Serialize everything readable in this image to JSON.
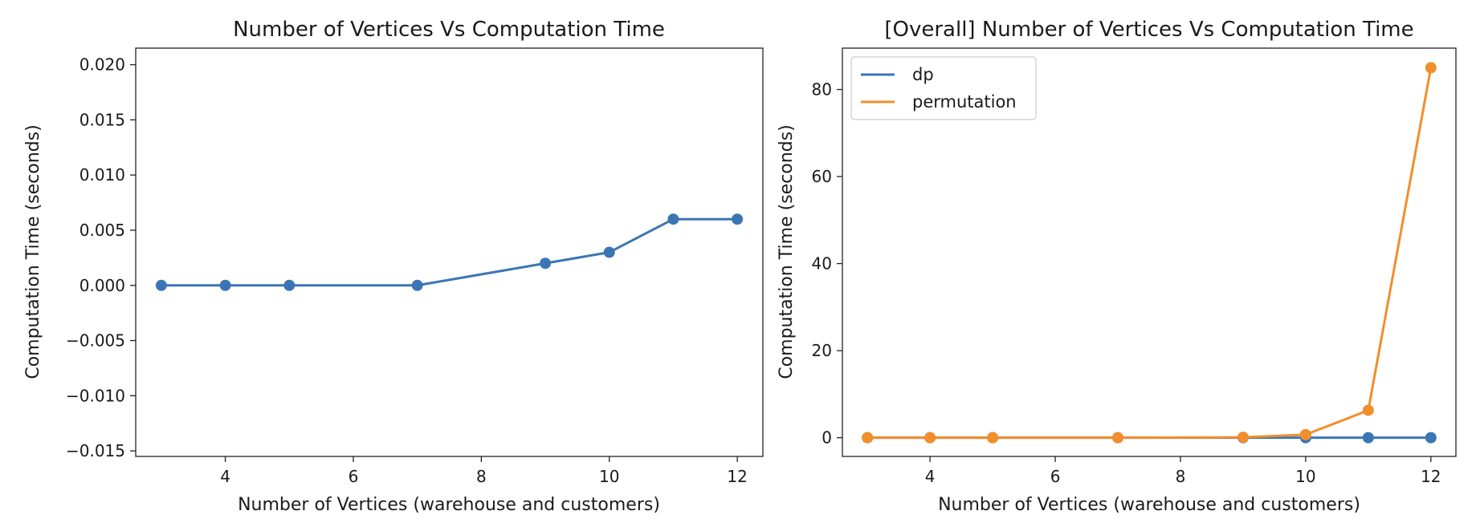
{
  "chart_data": [
    {
      "type": "line",
      "title": "Number of Vertices Vs Computation Time",
      "xlabel": "Number of Vertices (warehouse and customers)",
      "ylabel": "Computation Time (seconds)",
      "xlim": [
        2.6,
        12.4
      ],
      "ylim": [
        -0.0155,
        0.0215
      ],
      "xticks": [
        4,
        6,
        8,
        10,
        12
      ],
      "xtick_labels": [
        "4",
        "6",
        "8",
        "10",
        "12"
      ],
      "yticks": [
        -0.015,
        -0.01,
        -0.005,
        0.0,
        0.005,
        0.01,
        0.015,
        0.02
      ],
      "ytick_labels": [
        "−0.015",
        "−0.010",
        "−0.005",
        "0.000",
        "0.005",
        "0.010",
        "0.015",
        "0.020"
      ],
      "grid": false,
      "legend": null,
      "series": [
        {
          "color": "#3a76b4",
          "x": [
            3,
            4,
            5,
            7,
            9,
            10,
            11,
            12
          ],
          "y": [
            0.0,
            0.0,
            0.0,
            0.0,
            0.002,
            0.003,
            0.006,
            0.006
          ]
        }
      ]
    },
    {
      "type": "line",
      "title": "[Overall] Number of Vertices Vs Computation Time",
      "xlabel": "Number of Vertices (warehouse and customers)",
      "ylabel": "Computation Time (seconds)",
      "xlim": [
        2.6,
        12.4
      ],
      "ylim": [
        -4.3,
        89.5
      ],
      "xticks": [
        4,
        6,
        8,
        10,
        12
      ],
      "xtick_labels": [
        "4",
        "6",
        "8",
        "10",
        "12"
      ],
      "yticks": [
        0,
        20,
        40,
        60,
        80
      ],
      "ytick_labels": [
        "0",
        "20",
        "40",
        "60",
        "80"
      ],
      "grid": false,
      "legend": "top-left",
      "series": [
        {
          "name": "dp",
          "color": "#3a76b4",
          "x": [
            3,
            4,
            5,
            7,
            9,
            10,
            11,
            12
          ],
          "y": [
            0.0,
            0.0,
            0.0,
            0.0,
            0.002,
            0.003,
            0.006,
            0.006
          ]
        },
        {
          "name": "permutation",
          "color": "#f28e2b",
          "x": [
            3,
            4,
            5,
            7,
            9,
            10,
            11,
            12
          ],
          "y": [
            0.0,
            0.0,
            0.0,
            0.0,
            0.1,
            0.7,
            6.3,
            85.0
          ]
        }
      ]
    }
  ]
}
